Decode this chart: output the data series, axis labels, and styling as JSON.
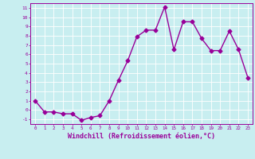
{
  "x": [
    0,
    1,
    2,
    3,
    4,
    5,
    6,
    7,
    8,
    9,
    10,
    11,
    12,
    13,
    14,
    15,
    16,
    17,
    18,
    19,
    20,
    21,
    22,
    23
  ],
  "y": [
    1,
    -0.2,
    -0.2,
    -0.4,
    -0.4,
    -1.1,
    -0.8,
    -0.6,
    1.0,
    3.2,
    5.3,
    7.9,
    8.6,
    8.6,
    11.1,
    6.5,
    9.5,
    9.5,
    7.7,
    6.4,
    6.4,
    8.5,
    6.5,
    3.5
  ],
  "line_color": "#990099",
  "marker": "D",
  "markersize": 2.5,
  "linewidth": 1.0,
  "xlabel": "Windchill (Refroidissement éolien,°C)",
  "xlabel_fontsize": 6.0,
  "bg_color": "#c8eef0",
  "grid_color": "#ffffff",
  "tick_color": "#990099",
  "label_color": "#990099",
  "ylim": [
    -1.5,
    11.5
  ],
  "xlim": [
    -0.5,
    23.5
  ],
  "yticks": [
    -1,
    0,
    1,
    2,
    3,
    4,
    5,
    6,
    7,
    8,
    9,
    10,
    11
  ],
  "xticks": [
    0,
    1,
    2,
    3,
    4,
    5,
    6,
    7,
    8,
    9,
    10,
    11,
    12,
    13,
    14,
    15,
    16,
    17,
    18,
    19,
    20,
    21,
    22,
    23
  ]
}
